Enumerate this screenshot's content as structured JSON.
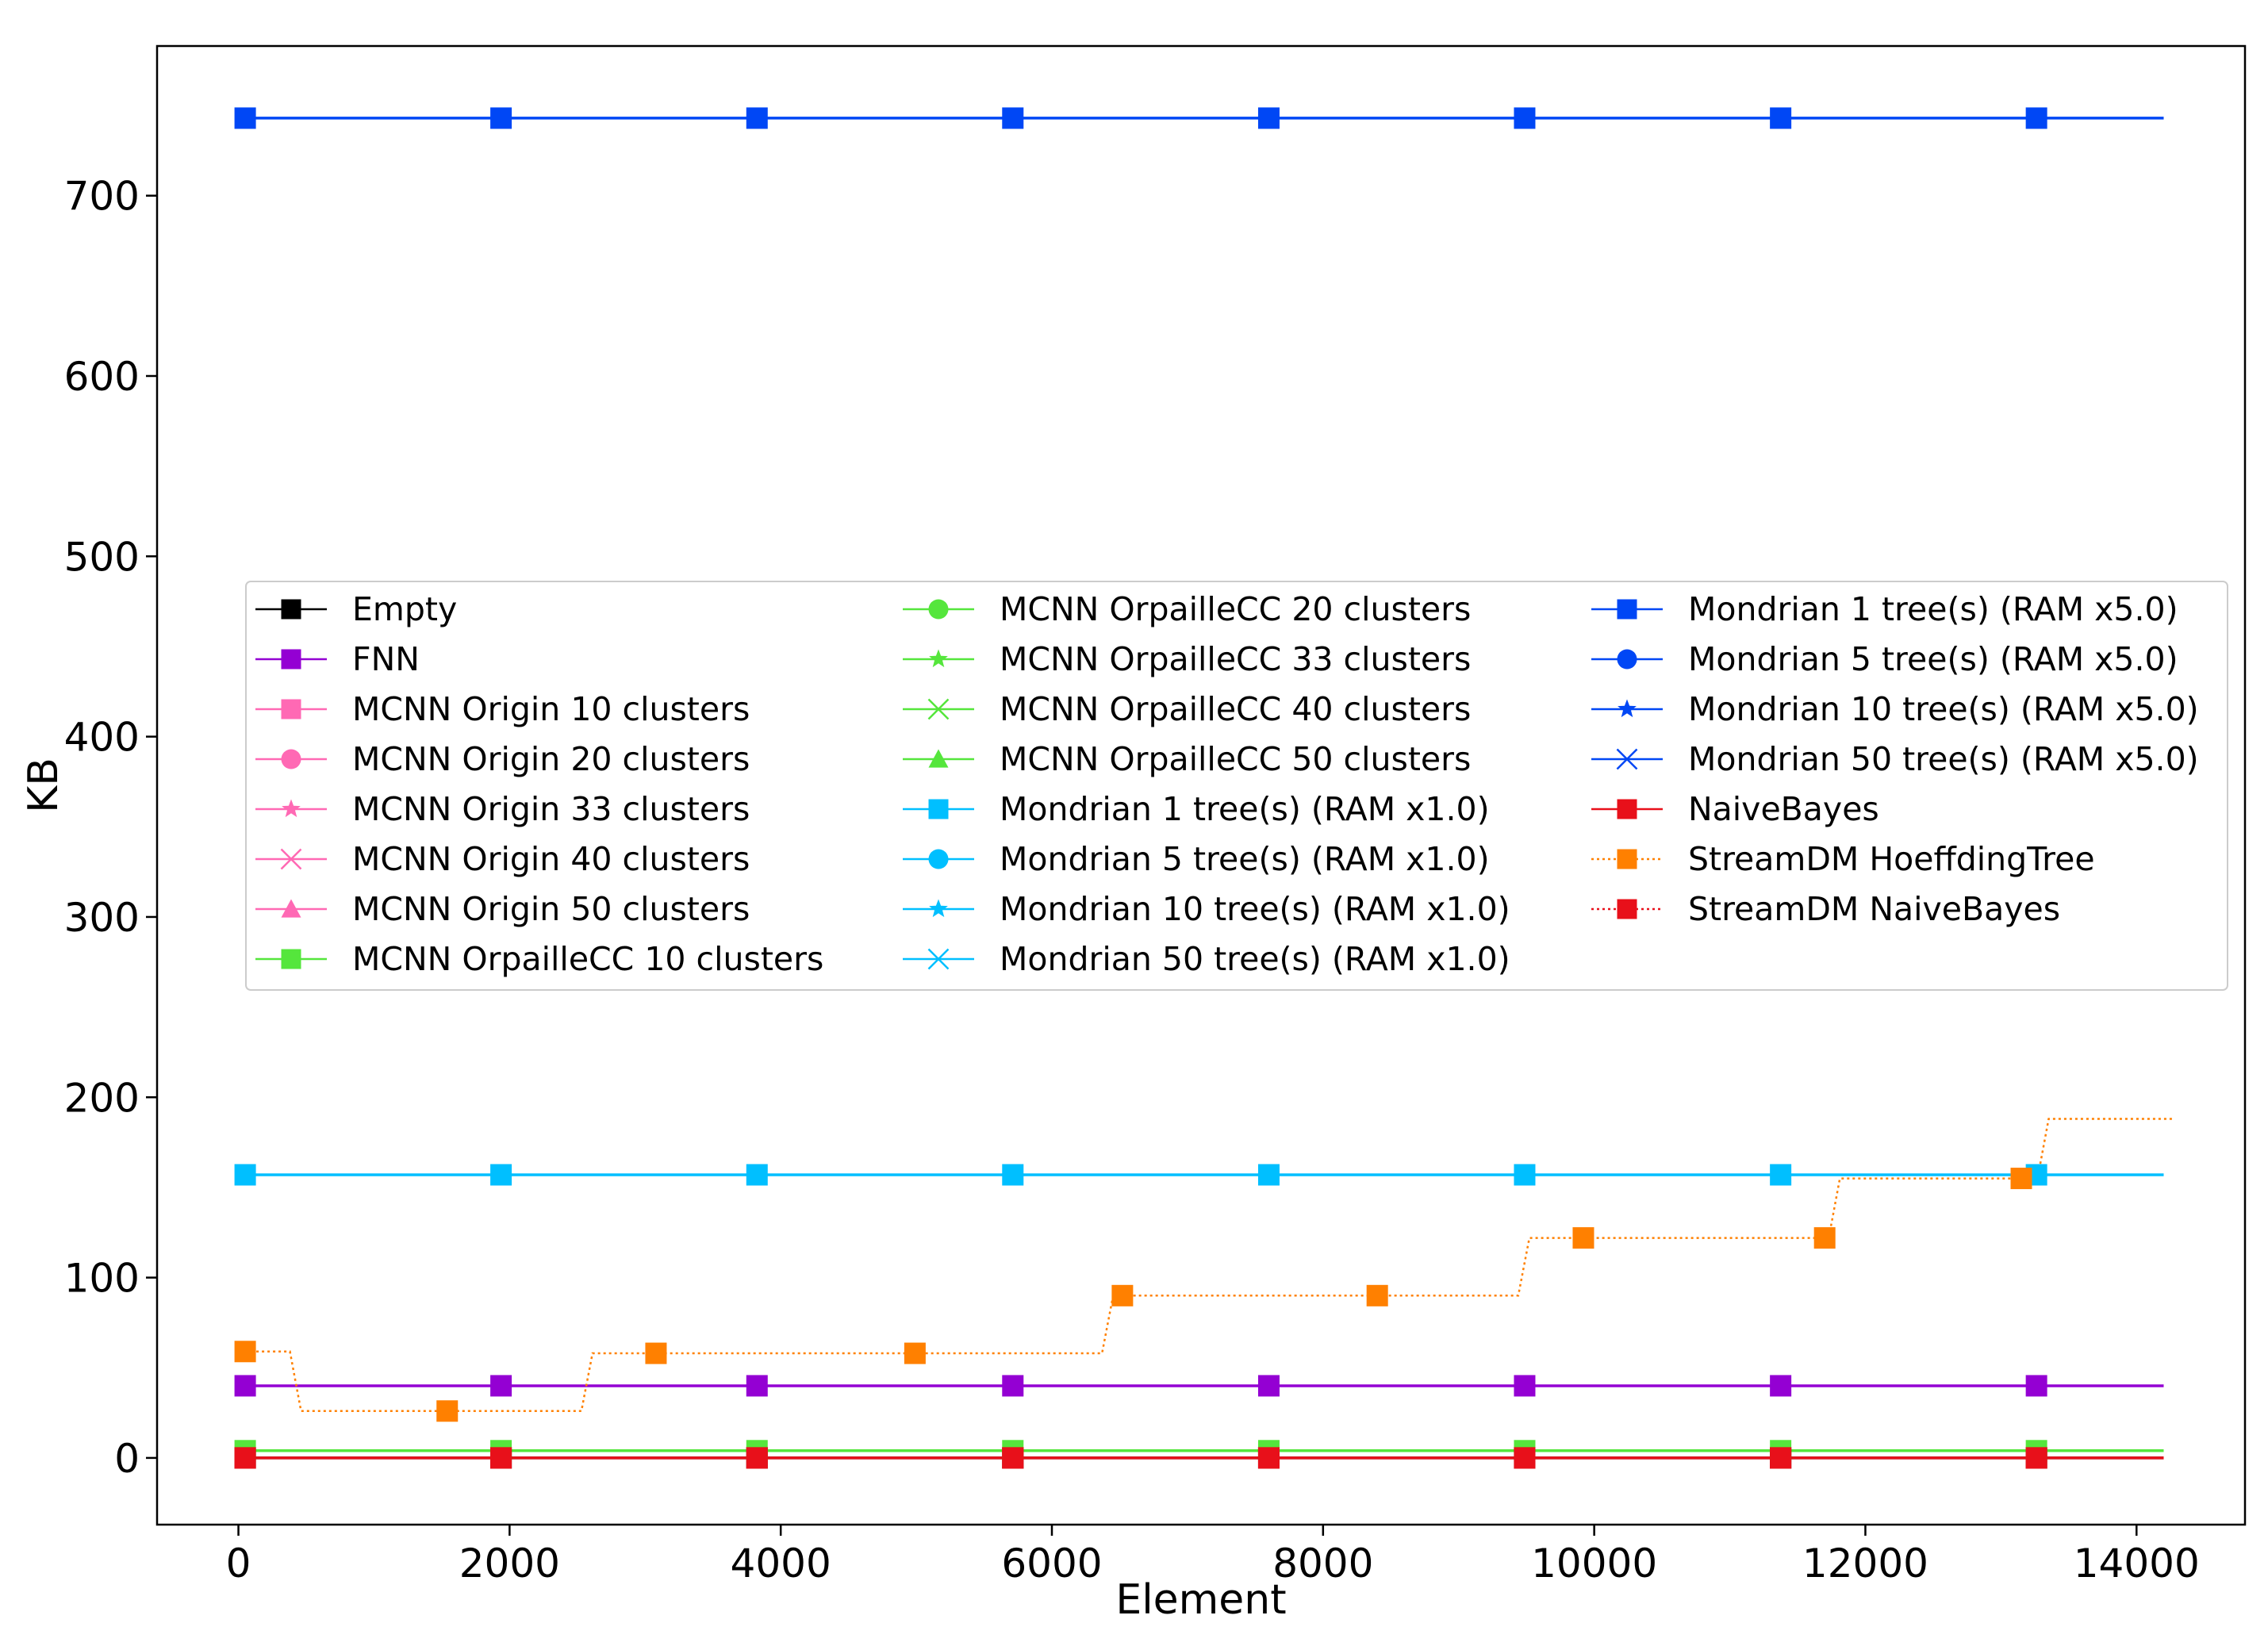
{
  "chart_data": {
    "type": "line",
    "xlabel": "Element",
    "ylabel": "KB",
    "xlim": [
      -600,
      14800
    ],
    "ylim": [
      -37,
      783
    ],
    "x_ticks": [
      0,
      2000,
      4000,
      6000,
      8000,
      10000,
      12000,
      14000
    ],
    "y_ticks": [
      0,
      100,
      200,
      300,
      400,
      500,
      600,
      700
    ],
    "grid": false,
    "legend_position": "center",
    "legend_columns": 3,
    "series": [
      {
        "name": "Empty",
        "color": "#000000",
        "marker": "square",
        "linestyle": "solid",
        "x": [
          50,
          1937,
          3825,
          5712,
          7600,
          9487,
          11375,
          13262,
          14200
        ],
        "y": [
          0,
          0,
          0,
          0,
          0,
          0,
          0,
          0,
          0
        ]
      },
      {
        "name": "FNN",
        "color": "#9400d3",
        "marker": "square",
        "linestyle": "solid",
        "x": [
          50,
          1937,
          3825,
          5712,
          7600,
          9487,
          11375,
          13262,
          14200
        ],
        "y": [
          40,
          40,
          40,
          40,
          40,
          40,
          40,
          40,
          40
        ]
      },
      {
        "name": "MCNN Origin 10 clusters",
        "color": "#ff69b4",
        "marker": "square",
        "linestyle": "solid",
        "x": [],
        "y": []
      },
      {
        "name": "MCNN Origin 20 clusters",
        "color": "#ff69b4",
        "marker": "circle",
        "linestyle": "solid",
        "x": [],
        "y": []
      },
      {
        "name": "MCNN Origin 33 clusters",
        "color": "#ff69b4",
        "marker": "star",
        "linestyle": "solid",
        "x": [],
        "y": []
      },
      {
        "name": "MCNN Origin 40 clusters",
        "color": "#ff69b4",
        "marker": "x",
        "linestyle": "solid",
        "x": [],
        "y": []
      },
      {
        "name": "MCNN Origin 50 clusters",
        "color": "#ff69b4",
        "marker": "triangle",
        "linestyle": "solid",
        "x": [],
        "y": []
      },
      {
        "name": "MCNN OrpailleCC 10 clusters",
        "color": "#55e63c",
        "marker": "square",
        "linestyle": "solid",
        "x": [
          50,
          1937,
          3825,
          5712,
          7600,
          9487,
          11375,
          13262,
          14200
        ],
        "y": [
          4,
          4,
          4,
          4,
          4,
          4,
          4,
          4,
          4
        ]
      },
      {
        "name": "MCNN OrpailleCC 20 clusters",
        "color": "#55e63c",
        "marker": "circle",
        "linestyle": "solid",
        "x": [],
        "y": []
      },
      {
        "name": "MCNN OrpailleCC 33 clusters",
        "color": "#55e63c",
        "marker": "star",
        "linestyle": "solid",
        "x": [],
        "y": []
      },
      {
        "name": "MCNN OrpailleCC 40 clusters",
        "color": "#55e63c",
        "marker": "x",
        "linestyle": "solid",
        "x": [],
        "y": []
      },
      {
        "name": "MCNN OrpailleCC 50 clusters",
        "color": "#55e63c",
        "marker": "triangle",
        "linestyle": "solid",
        "x": [],
        "y": []
      },
      {
        "name": "Mondrian 1 tree(s) (RAM x1.0)",
        "color": "#00bfff",
        "marker": "square",
        "linestyle": "solid",
        "x": [
          50,
          1937,
          3825,
          5712,
          7600,
          9487,
          11375,
          13262,
          14200
        ],
        "y": [
          157,
          157,
          157,
          157,
          157,
          157,
          157,
          157,
          157
        ]
      },
      {
        "name": "Mondrian 5 tree(s) (RAM x1.0)",
        "color": "#00bfff",
        "marker": "circle",
        "linestyle": "solid",
        "x": [],
        "y": []
      },
      {
        "name": "Mondrian 10 tree(s) (RAM x1.0)",
        "color": "#00bfff",
        "marker": "star",
        "linestyle": "solid",
        "x": [],
        "y": []
      },
      {
        "name": "Mondrian 50 tree(s) (RAM x1.0)",
        "color": "#00bfff",
        "marker": "x",
        "linestyle": "solid",
        "x": [],
        "y": []
      },
      {
        "name": "Mondrian 1 tree(s) (RAM x5.0)",
        "color": "#0047f5",
        "marker": "square",
        "linestyle": "solid",
        "x": [
          50,
          1937,
          3825,
          5712,
          7600,
          9487,
          11375,
          13262,
          14200
        ],
        "y": [
          743,
          743,
          743,
          743,
          743,
          743,
          743,
          743,
          743
        ]
      },
      {
        "name": "Mondrian 5 tree(s) (RAM x5.0)",
        "color": "#0047f5",
        "marker": "circle",
        "linestyle": "solid",
        "x": [],
        "y": []
      },
      {
        "name": "Mondrian 10 tree(s) (RAM x5.0)",
        "color": "#0047f5",
        "marker": "star",
        "linestyle": "solid",
        "x": [],
        "y": []
      },
      {
        "name": "Mondrian 50 tree(s) (RAM x5.0)",
        "color": "#0047f5",
        "marker": "x",
        "linestyle": "solid",
        "x": [],
        "y": []
      },
      {
        "name": "NaiveBayes",
        "color": "#e8101a",
        "marker": "square",
        "linestyle": "solid",
        "x": [
          50,
          1937,
          3825,
          5712,
          7600,
          9487,
          11375,
          13262,
          14200
        ],
        "y": [
          0,
          0,
          0,
          0,
          0,
          0,
          0,
          0,
          0
        ]
      },
      {
        "name": "StreamDM HoeffdingTree",
        "color": "#ff8000",
        "marker": "square",
        "linestyle": "dotted",
        "step": true,
        "x": [
          50,
          380,
          2530,
          6370,
          9440,
          11730,
          13270,
          14200
        ],
        "y": [
          59,
          26,
          58,
          90,
          122,
          155,
          188,
          188
        ],
        "marker_x": [
          50,
          1540,
          3080,
          4990,
          6520,
          8400,
          9920,
          11700,
          13150
        ],
        "marker_y": [
          59,
          26,
          58,
          58,
          90,
          90,
          122,
          122,
          155
        ]
      },
      {
        "name": "StreamDM NaiveBayes",
        "color": "#e8101a",
        "marker": "square",
        "linestyle": "dotted",
        "x": [
          50,
          1937,
          3825,
          5712,
          7600,
          9487,
          11375,
          13262,
          14200
        ],
        "y": [
          0,
          0,
          0,
          0,
          0,
          0,
          0,
          0,
          0
        ]
      }
    ]
  }
}
